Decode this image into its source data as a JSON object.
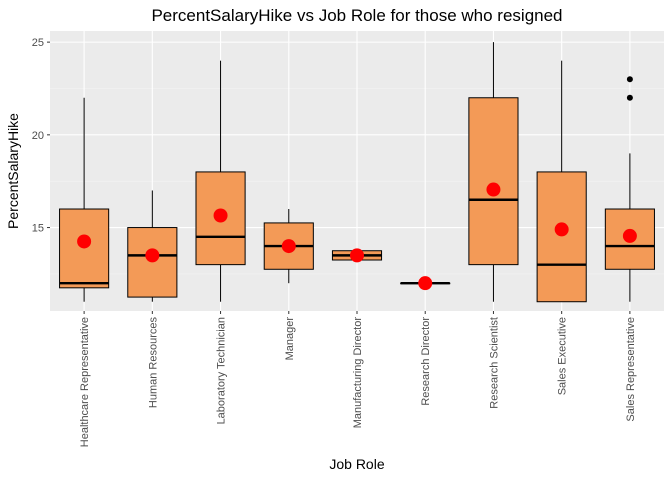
{
  "chart_data": {
    "type": "box",
    "title": "PercentSalaryHike vs Job Role for those who resigned",
    "xlabel": "Job Role",
    "ylabel": "PercentSalaryHike",
    "ylim": [
      10.5,
      25.6
    ],
    "yticks": [
      15,
      20,
      25
    ],
    "grid": true,
    "legend": "none",
    "colors": {
      "panel": "#ebebeb",
      "grid_major": "#ffffff",
      "grid_minor": "#f4f4f4",
      "box_fill": "#f39a57",
      "box_stroke": "#000000",
      "mean_point": "#ff0000",
      "outlier": "#000000",
      "tick_label": "#4d4d4d"
    },
    "categories": [
      "Healthcare Representative",
      "Human Resources",
      "Laboratory Technician",
      "Manager",
      "Manufacturing Director",
      "Research Director",
      "Research Scientist",
      "Sales Executive",
      "Sales Representative"
    ],
    "boxes": [
      {
        "min": 11,
        "q1": 11.75,
        "median": 12,
        "q3": 16,
        "max": 22,
        "mean": 14.25,
        "outliers": []
      },
      {
        "min": 11,
        "q1": 11.25,
        "median": 13.5,
        "q3": 15,
        "max": 17,
        "mean": 13.5,
        "outliers": []
      },
      {
        "min": 11,
        "q1": 13,
        "median": 14.5,
        "q3": 18,
        "max": 24,
        "mean": 15.65,
        "outliers": []
      },
      {
        "min": 12,
        "q1": 12.75,
        "median": 14,
        "q3": 15.25,
        "max": 16,
        "mean": 14,
        "outliers": []
      },
      {
        "min": 13.25,
        "q1": 13.25,
        "median": 13.5,
        "q3": 13.75,
        "max": 13.75,
        "mean": 13.5,
        "outliers": []
      },
      {
        "min": 12,
        "q1": 12,
        "median": 12,
        "q3": 12,
        "max": 12,
        "mean": 12,
        "outliers": []
      },
      {
        "min": 11,
        "q1": 13,
        "median": 16.5,
        "q3": 22,
        "max": 25,
        "mean": 17.05,
        "outliers": []
      },
      {
        "min": 11,
        "q1": 11,
        "median": 13,
        "q3": 18,
        "max": 24,
        "mean": 14.9,
        "outliers": []
      },
      {
        "min": 11,
        "q1": 12.75,
        "median": 14,
        "q3": 16,
        "max": 19,
        "mean": 14.55,
        "outliers": [
          22,
          23
        ]
      }
    ]
  }
}
